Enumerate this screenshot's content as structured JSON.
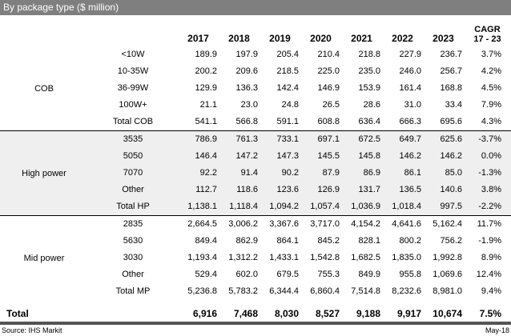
{
  "chart_data": {
    "type": "table",
    "title": "By package type ($ million)",
    "columns": [
      "2017",
      "2018",
      "2019",
      "2020",
      "2021",
      "2022",
      "2023"
    ],
    "cagr_header_line1": "CAGR",
    "cagr_header_line2": "17 - 23",
    "sections": [
      {
        "group": "COB",
        "shaded": false,
        "rows": [
          {
            "type": "<10W",
            "values": [
              "189.9",
              "197.9",
              "205.4",
              "210.4",
              "218.8",
              "227.9",
              "236.7"
            ],
            "cagr": "3.7%"
          },
          {
            "type": "10-35W",
            "values": [
              "200.2",
              "209.6",
              "218.5",
              "225.0",
              "235.0",
              "246.0",
              "256.7"
            ],
            "cagr": "4.2%"
          },
          {
            "type": "36-99W",
            "values": [
              "129.9",
              "136.3",
              "142.4",
              "146.9",
              "153.9",
              "161.4",
              "168.8"
            ],
            "cagr": "4.5%"
          },
          {
            "type": "100W+",
            "values": [
              "21.1",
              "23.0",
              "24.8",
              "26.5",
              "28.6",
              "31.0",
              "33.4"
            ],
            "cagr": "7.9%"
          },
          {
            "type": "Total COB",
            "values": [
              "541.1",
              "566.8",
              "591.1",
              "608.8",
              "636.4",
              "666.3",
              "695.6"
            ],
            "cagr": "4.3%"
          }
        ]
      },
      {
        "group": "High power",
        "shaded": true,
        "rows": [
          {
            "type": "3535",
            "values": [
              "786.9",
              "761.3",
              "733.1",
              "697.1",
              "672.5",
              "649.7",
              "625.6"
            ],
            "cagr": "-3.7%"
          },
          {
            "type": "5050",
            "values": [
              "146.4",
              "147.2",
              "147.3",
              "145.5",
              "145.8",
              "146.2",
              "146.2"
            ],
            "cagr": "0.0%"
          },
          {
            "type": "7070",
            "values": [
              "92.2",
              "91.4",
              "90.2",
              "87.9",
              "86.9",
              "86.1",
              "85.0"
            ],
            "cagr": "-1.3%"
          },
          {
            "type": "Other",
            "values": [
              "112.7",
              "118.6",
              "123.6",
              "126.9",
              "131.7",
              "136.5",
              "140.6"
            ],
            "cagr": "3.8%"
          },
          {
            "type": "Total HP",
            "values": [
              "1,138.1",
              "1,118.4",
              "1,094.2",
              "1,057.4",
              "1,036.9",
              "1,018.4",
              "997.5"
            ],
            "cagr": "-2.2%"
          }
        ]
      },
      {
        "group": "Mid power",
        "shaded": false,
        "rows": [
          {
            "type": "2835",
            "values": [
              "2,664.5",
              "3,006.2",
              "3,367.6",
              "3,717.0",
              "4,154.2",
              "4,641.6",
              "5,162.4"
            ],
            "cagr": "11.7%"
          },
          {
            "type": "5630",
            "values": [
              "849.4",
              "862.9",
              "864.1",
              "845.2",
              "828.1",
              "800.2",
              "756.2"
            ],
            "cagr": "-1.9%"
          },
          {
            "type": "3030",
            "values": [
              "1,193.4",
              "1,312.2",
              "1,433.1",
              "1,542.8",
              "1,682.5",
              "1,835.0",
              "1,992.8"
            ],
            "cagr": "8.9%"
          },
          {
            "type": "Other",
            "values": [
              "529.4",
              "602.0",
              "679.5",
              "755.3",
              "849.9",
              "955.8",
              "1,069.6"
            ],
            "cagr": "12.4%"
          },
          {
            "type": "Total MP",
            "values": [
              "5,236.8",
              "5,783.2",
              "6,344.4",
              "6,860.4",
              "7,514.8",
              "8,232.6",
              "8,981.0"
            ],
            "cagr": "9.4%"
          }
        ]
      }
    ],
    "total_row": {
      "label": "Total",
      "values": [
        "6,916",
        "7,468",
        "8,030",
        "8,527",
        "9,188",
        "9,917",
        "10,674"
      ],
      "cagr": "7.5%"
    },
    "source": "Source: IHS Markit",
    "date": "May-18"
  },
  "colors": {
    "titlebar": "#7f7f7f",
    "shaded_section": "#efefef",
    "divider": "#000000",
    "footer_bar": "#545454",
    "title_text": "#ffffff"
  }
}
